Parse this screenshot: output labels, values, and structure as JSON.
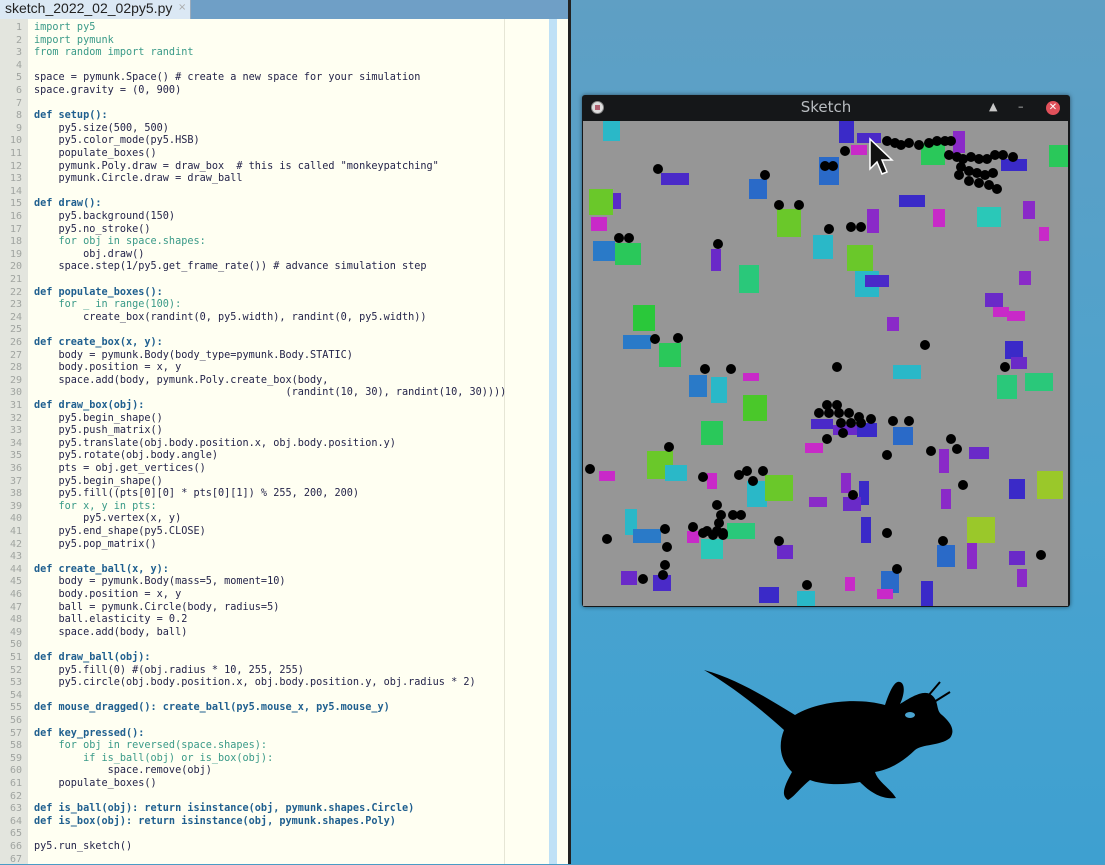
{
  "editor": {
    "tab_label": "sketch_2022_02_02py5.py",
    "tab_close": "×",
    "lines": [
      "import py5",
      "import pymunk",
      "from random import randint",
      "",
      "space = pymunk.Space() # create a new space for your simulation",
      "space.gravity = (0, 900)",
      "",
      "def setup():",
      "    py5.size(500, 500)",
      "    py5.color_mode(py5.HSB)",
      "    populate_boxes()",
      "    pymunk.Poly.draw = draw_box  # this is called \"monkeypatching\"",
      "    pymunk.Circle.draw = draw_ball",
      "",
      "def draw():",
      "    py5.background(150)",
      "    py5.no_stroke()",
      "    for obj in space.shapes:",
      "        obj.draw()",
      "    space.step(1/py5.get_frame_rate()) # advance simulation step",
      "",
      "def populate_boxes():",
      "    for _ in range(100):",
      "        create_box(randint(0, py5.width), randint(0, py5.width))",
      "",
      "def create_box(x, y):",
      "    body = pymunk.Body(body_type=pymunk.Body.STATIC)",
      "    body.position = x, y",
      "    space.add(body, pymunk.Poly.create_box(body,",
      "                                         (randint(10, 30), randint(10, 30))))",
      "def draw_box(obj):",
      "    py5.begin_shape()",
      "    py5.push_matrix()",
      "    py5.translate(obj.body.position.x, obj.body.position.y)",
      "    py5.rotate(obj.body.angle)",
      "    pts = obj.get_vertices()",
      "    py5.begin_shape()",
      "    py5.fill((pts[0][0] * pts[0][1]) % 255, 200, 200)",
      "    for x, y in pts:",
      "        py5.vertex(x, y)",
      "    py5.end_shape(py5.CLOSE)",
      "    py5.pop_matrix()",
      "",
      "def create_ball(x, y):",
      "    body = pymunk.Body(mass=5, moment=10)",
      "    body.position = x, y",
      "    ball = pymunk.Circle(body, radius=5)",
      "    ball.elasticity = 0.2",
      "    space.add(body, ball)",
      "",
      "def draw_ball(obj):",
      "    py5.fill(0) #(obj.radius * 10, 255, 255)",
      "    py5.circle(obj.body.position.x, obj.body.position.y, obj.radius * 2)",
      "",
      "def mouse_dragged(): create_ball(py5.mouse_x, py5.mouse_y)",
      "",
      "def key_pressed():",
      "    for obj in reversed(space.shapes):",
      "        if is_ball(obj) or is_box(obj):",
      "            space.remove(obj)",
      "    populate_boxes()",
      "",
      "def is_ball(obj): return isinstance(obj, pymunk.shapes.Circle)",
      "def is_box(obj): return isinstance(obj, pymunk.shapes.Poly)",
      "",
      "py5.run_sketch()",
      ""
    ]
  },
  "sketch_window": {
    "title": "Sketch",
    "icons": {
      "app": "py5-app-icon",
      "eject": "▲",
      "minimize": "–",
      "close": "✕"
    },
    "background_color": "#969696",
    "ball_color": "#000000"
  },
  "desktop": {
    "mascot": "xfce-mouse-logo"
  }
}
